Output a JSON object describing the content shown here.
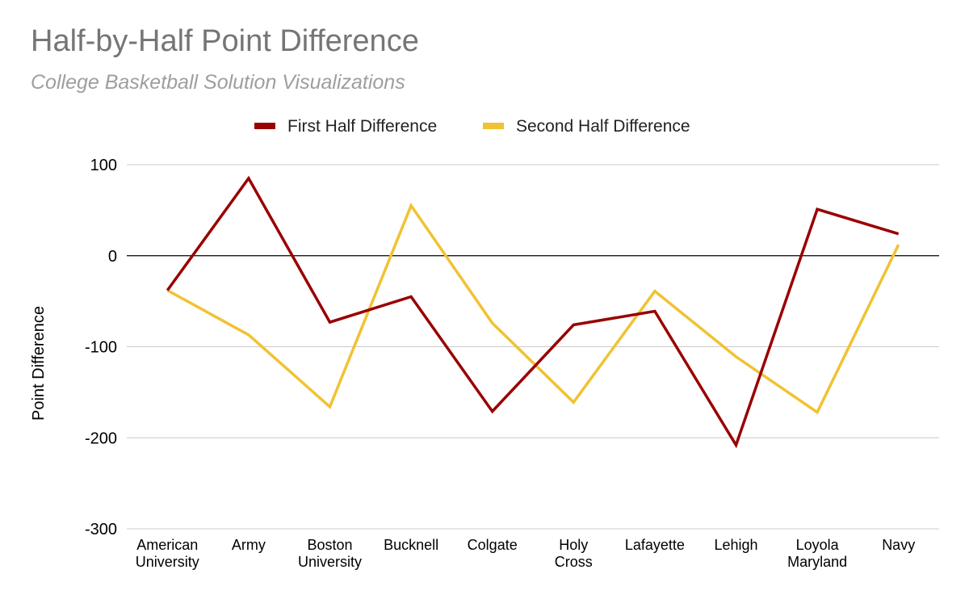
{
  "chart_data": {
    "type": "line",
    "title": "Half-by-Half Point Difference",
    "subtitle": "College Basketball Solution Visualizations",
    "xlabel": "",
    "ylabel": "Point Difference",
    "ylim": [
      -300,
      100
    ],
    "yticks": [
      100,
      0,
      -100,
      -200,
      -300
    ],
    "categories": [
      [
        "American",
        "University"
      ],
      [
        "Army"
      ],
      [
        "Boston",
        "University"
      ],
      [
        "Bucknell"
      ],
      [
        "Colgate"
      ],
      [
        "Holy",
        "Cross"
      ],
      [
        "Lafayette"
      ],
      [
        "Lehigh"
      ],
      [
        "Loyola",
        "Maryland"
      ],
      [
        "Navy"
      ]
    ],
    "series": [
      {
        "name": "First Half Difference",
        "color": "#990000",
        "values": [
          -38,
          85,
          -73,
          -45,
          -171,
          -76,
          -61,
          -208,
          51,
          24
        ]
      },
      {
        "name": "Second Half Difference",
        "color": "#f1c232",
        "values": [
          -38,
          -87,
          -166,
          55,
          -74,
          -161,
          -39,
          -111,
          -172,
          12
        ]
      }
    ],
    "grid": true,
    "legend": "top-center"
  }
}
